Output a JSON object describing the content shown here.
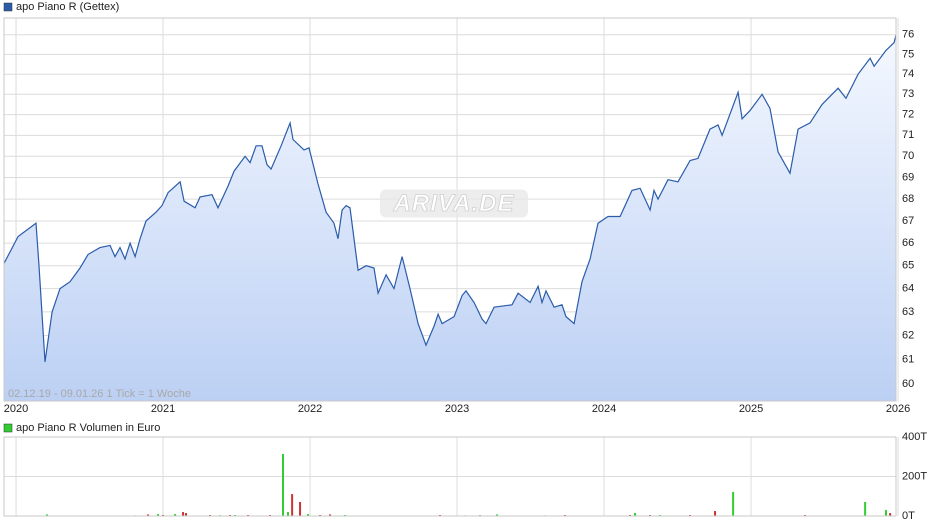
{
  "chart_data": [
    {
      "type": "line",
      "fill": true,
      "log_scale": true,
      "grid": true,
      "watermark": "ARIVA.DE",
      "annotation": "02.12.19 - 09.01.26   1 Tick = 1 Woche",
      "x": [
        2019.918,
        2020.014,
        2020.116,
        2020.136,
        2020.156,
        2020.197,
        2020.245,
        2020.299,
        2020.367,
        2020.435,
        2020.49,
        2020.571,
        2020.639,
        2020.673,
        2020.707,
        2020.741,
        2020.776,
        2020.81,
        2020.844,
        2020.884,
        2020.952,
        2020.993,
        2021.034,
        2021.116,
        2021.143,
        2021.218,
        2021.252,
        2021.333,
        2021.374,
        2021.442,
        2021.483,
        2021.558,
        2021.592,
        2021.633,
        2021.673,
        2021.707,
        2021.735,
        2021.803,
        2021.864,
        2021.884,
        2021.959,
        2021.993,
        2022.054,
        2022.109,
        2022.163,
        2022.19,
        2022.218,
        2022.245,
        2022.272,
        2022.327,
        2022.381,
        2022.435,
        2022.463,
        2022.517,
        2022.571,
        2022.626,
        2022.68,
        2022.735,
        2022.789,
        2022.844,
        2022.871,
        2022.898,
        2022.98,
        2023.034,
        2023.061,
        2023.116,
        2023.17,
        2023.197,
        2023.252,
        2023.374,
        2023.415,
        2023.497,
        2023.551,
        2023.578,
        2023.605,
        2023.66,
        2023.714,
        2023.741,
        2023.796,
        2023.85,
        2023.905,
        2023.959,
        2024.027,
        2024.109,
        2024.19,
        2024.245,
        2024.313,
        2024.34,
        2024.367,
        2024.435,
        2024.503,
        2024.585,
        2024.639,
        2024.721,
        2024.776,
        2024.803,
        2024.912,
        2024.939,
        2024.993,
        2025.075,
        2025.129,
        2025.184,
        2025.265,
        2025.32,
        2025.401,
        2025.483,
        2025.592,
        2025.646,
        2025.728,
        2025.81,
        2025.837,
        2025.918,
        2025.973,
        2025.986
      ],
      "series": [
        {
          "name": "apo Piano R (Gettex)",
          "color": "#2a5caa",
          "values": [
            65.1,
            66.3,
            66.8,
            66.9,
            65.0,
            60.9,
            63.0,
            64.0,
            64.3,
            64.9,
            65.5,
            65.8,
            65.9,
            65.4,
            65.8,
            65.3,
            66.0,
            65.4,
            66.2,
            67.0,
            67.4,
            67.7,
            68.3,
            68.8,
            67.9,
            67.6,
            68.1,
            68.2,
            67.6,
            68.6,
            69.3,
            70.0,
            69.7,
            70.5,
            70.5,
            69.6,
            69.4,
            70.5,
            71.6,
            70.8,
            70.3,
            70.4,
            68.7,
            67.4,
            66.9,
            66.2,
            67.5,
            67.7,
            67.6,
            64.8,
            65.0,
            64.9,
            63.8,
            64.6,
            64.0,
            65.4,
            64.0,
            62.5,
            61.6,
            62.4,
            62.9,
            62.5,
            62.8,
            63.7,
            63.9,
            63.4,
            62.7,
            62.5,
            63.2,
            63.3,
            63.8,
            63.4,
            64.1,
            63.4,
            63.9,
            63.2,
            63.3,
            62.8,
            62.5,
            64.3,
            65.3,
            66.9,
            67.2,
            67.2,
            68.4,
            68.5,
            67.5,
            68.4,
            68.0,
            68.9,
            68.8,
            69.8,
            69.9,
            71.3,
            71.5,
            71.0,
            73.1,
            71.8,
            72.2,
            73.0,
            72.3,
            70.2,
            69.2,
            71.3,
            71.6,
            72.5,
            73.3,
            72.8,
            74.0,
            74.8,
            74.4,
            75.2,
            75.6,
            76.0
          ]
        }
      ],
      "xlim": [
        2019.918,
        2025.986
      ],
      "xticks": [
        2020,
        2021,
        2022,
        2023,
        2024,
        2025,
        2026
      ],
      "ylim": [
        59.31,
        76.87
      ],
      "yticks": [
        60,
        61,
        62,
        63,
        64,
        65,
        66,
        67,
        68,
        69,
        70,
        71,
        72,
        73,
        74,
        75,
        76
      ]
    },
    {
      "type": "bar",
      "grid": true,
      "x": [
        2020.211,
        2020.81,
        2020.898,
        2020.966,
        2021.0,
        2021.082,
        2021.136,
        2021.156,
        2021.32,
        2021.388,
        2021.456,
        2021.49,
        2021.578,
        2021.728,
        2021.816,
        2021.85,
        2021.878,
        2021.932,
        2021.986,
        2022.068,
        2022.136,
        2022.238,
        2022.884,
        2023.054,
        2023.156,
        2023.272,
        2023.599,
        2023.735,
        2024.177,
        2024.211,
        2024.313,
        2024.381,
        2024.585,
        2024.755,
        2024.878,
        2025.367,
        2025.776,
        2025.918,
        2025.946
      ],
      "series": [
        {
          "name": "apo Piano R Volumen in Euro",
          "color": "#33cc33",
          "values": [
            8,
            3,
            8,
            10,
            5,
            10,
            20,
            15,
            5,
            4,
            5,
            5,
            5,
            5,
            314,
            20,
            111,
            71,
            10,
            5,
            8,
            5,
            5,
            3,
            4,
            8,
            3,
            5,
            5,
            15,
            5,
            5,
            5,
            25,
            122,
            5,
            71,
            30,
            15
          ],
          "colors": [
            "#33cc33",
            "#cc3333",
            "#cc3333",
            "#33cc33",
            "#cc3333",
            "#33cc33",
            "#cc3333",
            "#cc3333",
            "#cc3333",
            "#33cc33",
            "#cc3333",
            "#33cc33",
            "#cc3333",
            "#cc3333",
            "#33cc33",
            "#33cc33",
            "#cc3333",
            "#cc3333",
            "#33cc33",
            "#cc3333",
            "#cc3333",
            "#33cc33",
            "#cc3333",
            "#cc3333",
            "#cc3333",
            "#33cc33",
            "#cc3333",
            "#cc3333",
            "#cc3333",
            "#33cc33",
            "#cc3333",
            "#33cc33",
            "#cc3333",
            "#cc3333",
            "#33cc33",
            "#cc3333",
            "#33cc33",
            "#33cc33",
            "#cc3333"
          ]
        }
      ],
      "xlim": [
        2019.918,
        2025.986
      ],
      "xticks": [
        2020,
        2021,
        2022,
        2023,
        2024,
        2025,
        2026
      ],
      "ylim": [
        0,
        400
      ],
      "yticks": [
        {
          "value": 0,
          "label": "0T"
        },
        {
          "value": 200,
          "label": "200T"
        },
        {
          "value": 400,
          "label": "400T"
        }
      ]
    }
  ]
}
